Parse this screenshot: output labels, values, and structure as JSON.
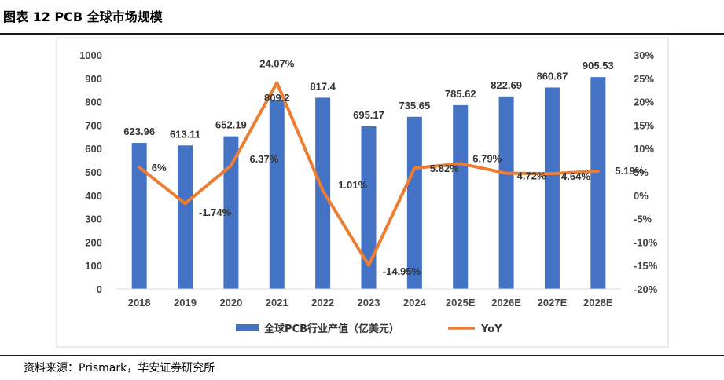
{
  "figure": {
    "title": "图表 12 PCB 全球市场规模",
    "source": "资料来源：Prismark，华安证券研究所"
  },
  "chart_data": {
    "type": "bar",
    "categories": [
      "2018",
      "2019",
      "2020",
      "2021",
      "2022",
      "2023",
      "2024",
      "2025E",
      "2026E",
      "2027E",
      "2028E"
    ],
    "series": [
      {
        "name": "全球PCB行业产值（亿美元）",
        "type": "bar",
        "axis": "left",
        "color": "#4472C4",
        "values": [
          623.96,
          613.11,
          652.19,
          809.2,
          817.4,
          695.17,
          735.65,
          785.62,
          822.69,
          860.87,
          905.53
        ],
        "labels": [
          "623.96",
          "613.11",
          "652.19",
          "809.2",
          "817.4",
          "695.17",
          "735.65",
          "785.62",
          "822.69",
          "860.87",
          "905.53"
        ]
      },
      {
        "name": "YoY",
        "type": "line",
        "axis": "right",
        "color": "#ED7D31",
        "values": [
          6,
          -1.74,
          6.37,
          24.07,
          1.01,
          -14.95,
          5.82,
          6.79,
          4.72,
          4.64,
          5.19
        ],
        "labels": [
          "6%",
          "-1.74%",
          "6.37%",
          "24.07%",
          "1.01%",
          "-14.95%",
          "5.82%",
          "6.79%",
          "4.72%",
          "4.64%",
          "5.19%"
        ]
      }
    ],
    "y_left": {
      "min": 0,
      "max": 1000,
      "step": 100,
      "ticks": [
        "0",
        "100",
        "200",
        "300",
        "400",
        "500",
        "600",
        "700",
        "800",
        "900",
        "1000"
      ]
    },
    "y_right": {
      "min": -20,
      "max": 30,
      "step": 5,
      "ticks": [
        "-20%",
        "-15%",
        "-10%",
        "-5%",
        "0%",
        "5%",
        "10%",
        "15%",
        "20%",
        "25%",
        "30%"
      ]
    },
    "grid": false,
    "legend_position": "bottom"
  }
}
